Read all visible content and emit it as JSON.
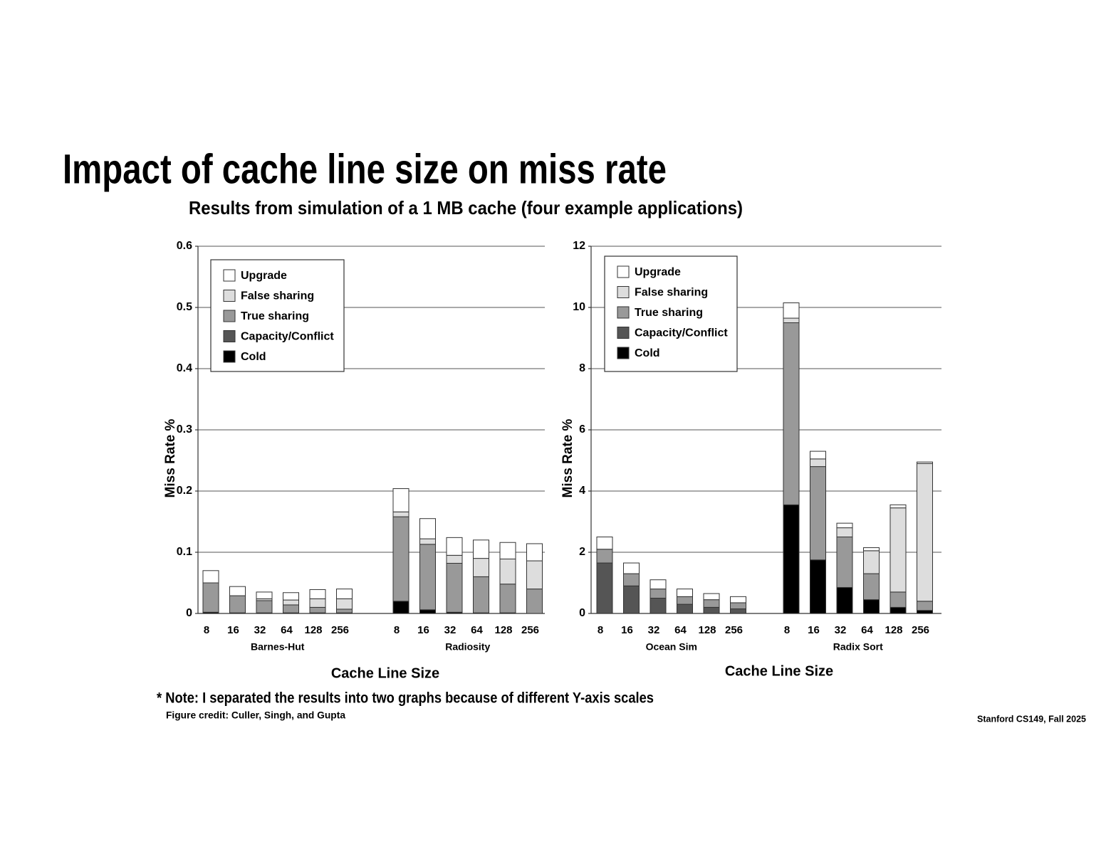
{
  "slide": {
    "title": "Impact of cache line size on miss rate",
    "subtitle": "Results from simulation of a 1 MB cache (four example applications)",
    "note": "* Note: I separated the results into two graphs because of different Y-axis scales",
    "credit": "Figure credit: Culler, Singh, and Gupta",
    "footer": "Stanford CS149, Fall 2025"
  },
  "chart_data": [
    {
      "type": "bar",
      "stacked": true,
      "y_label": "Miss Rate %",
      "x_label": "Cache Line Size",
      "groups": [
        "Barnes-Hut",
        "Radiosity"
      ],
      "categories": [
        "8",
        "16",
        "32",
        "64",
        "128",
        "256",
        "8",
        "16",
        "32",
        "64",
        "128",
        "256"
      ],
      "ylim": [
        0,
        0.6
      ],
      "yticks": [
        0,
        0.1,
        0.2,
        0.3,
        0.4,
        0.5,
        0.6
      ],
      "grid": true,
      "series": [
        {
          "name": "Cold",
          "color": "#000000",
          "values": [
            0.002,
            0.001,
            0,
            0,
            0,
            0,
            0.02,
            0.006,
            0.002,
            0.001,
            0.001,
            0
          ]
        },
        {
          "name": "Capacity/Conflict",
          "color": "#555555",
          "values": [
            0,
            0,
            0.001,
            0.001,
            0.001,
            0.001,
            0,
            0,
            0,
            0,
            0,
            0
          ]
        },
        {
          "name": "True sharing",
          "color": "#999999",
          "values": [
            0.048,
            0.028,
            0.02,
            0.013,
            0.009,
            0.006,
            0.138,
            0.107,
            0.08,
            0.059,
            0.047,
            0.04
          ]
        },
        {
          "name": "False sharing",
          "color": "#dddddd",
          "values": [
            0,
            0,
            0.003,
            0.008,
            0.014,
            0.017,
            0.008,
            0.009,
            0.013,
            0.03,
            0.041,
            0.046
          ]
        },
        {
          "name": "Upgrade",
          "color": "#ffffff",
          "values": [
            0.02,
            0.015,
            0.011,
            0.012,
            0.015,
            0.016,
            0.038,
            0.033,
            0.029,
            0.03,
            0.027,
            0.028
          ]
        }
      ]
    },
    {
      "type": "bar",
      "stacked": true,
      "y_label": "Miss Rate %",
      "x_label": "Cache Line Size",
      "groups": [
        "Ocean Sim",
        "Radix Sort"
      ],
      "categories": [
        "8",
        "16",
        "32",
        "64",
        "128",
        "256",
        "8",
        "16",
        "32",
        "64",
        "128",
        "256"
      ],
      "ylim": [
        0,
        12
      ],
      "yticks": [
        0,
        2,
        4,
        6,
        8,
        10,
        12
      ],
      "grid": true,
      "series": [
        {
          "name": "Cold",
          "color": "#000000",
          "values": [
            0,
            0,
            0,
            0,
            0,
            0,
            3.55,
            1.75,
            0.85,
            0.45,
            0.2,
            0.1
          ]
        },
        {
          "name": "Capacity/Conflict",
          "color": "#555555",
          "values": [
            1.65,
            0.9,
            0.5,
            0.3,
            0.2,
            0.15,
            0,
            0,
            0,
            0,
            0,
            0
          ]
        },
        {
          "name": "True sharing",
          "color": "#999999",
          "values": [
            0.45,
            0.4,
            0.3,
            0.25,
            0.25,
            0.2,
            5.95,
            3.05,
            1.65,
            0.85,
            0.5,
            0.3
          ]
        },
        {
          "name": "False sharing",
          "color": "#dddddd",
          "values": [
            0,
            0,
            0,
            0,
            0,
            0,
            0.15,
            0.25,
            0.3,
            0.75,
            2.75,
            4.5
          ]
        },
        {
          "name": "Upgrade",
          "color": "#ffffff",
          "values": [
            0.4,
            0.35,
            0.3,
            0.25,
            0.2,
            0.2,
            0.5,
            0.25,
            0.15,
            0.1,
            0.1,
            0.05
          ]
        }
      ]
    }
  ]
}
